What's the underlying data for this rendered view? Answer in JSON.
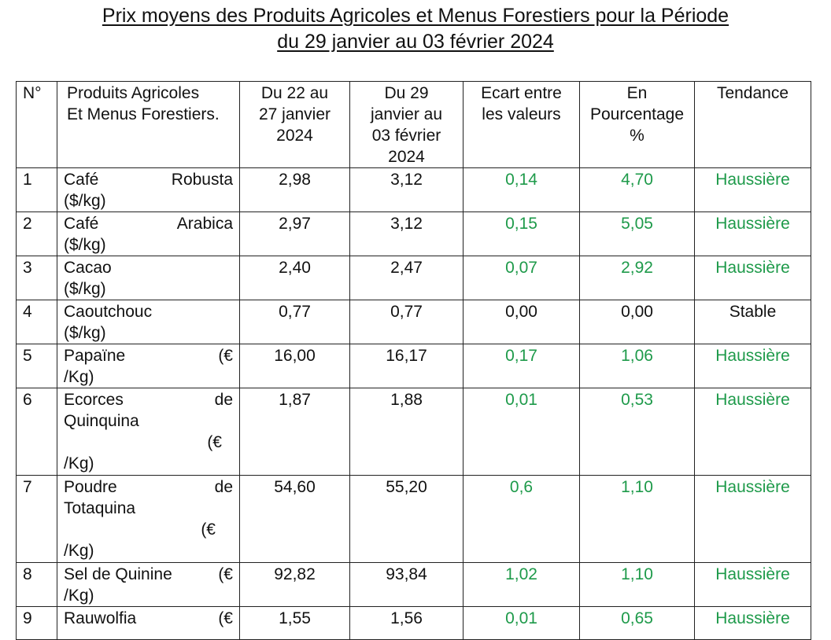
{
  "title": {
    "line1": "Prix moyens des Produits Agricoles et Menus Forestiers pour la Période",
    "line2": "du 29  janvier au 03 février  2024"
  },
  "headers": {
    "no": "N°",
    "product": [
      "Produits  Agricoles",
      "Et Menus Forestiers."
    ],
    "prev": [
      "Du 22 au",
      "27 janvier",
      "2024"
    ],
    "curr": [
      "Du 29",
      "janvier au",
      "03 février",
      "2024"
    ],
    "diff": [
      "Ecart entre",
      "les valeurs"
    ],
    "pct": [
      "En",
      "Pourcentage",
      "%"
    ],
    "trend": "Tendance"
  },
  "colors": {
    "positive": "#1e9a4a",
    "neutral": "#111111"
  },
  "rows": [
    {
      "no": "1",
      "p1": "Café",
      "p1b": "Robusta",
      "p2": "($/kg)",
      "prev": "2,98",
      "curr": "3,12",
      "diff": "0,14",
      "pct": "4,70",
      "trend": "Haussière",
      "color": "green"
    },
    {
      "no": "2",
      "p1": "Café",
      "p1b": "Arabica",
      "p2": "($/kg)",
      "prev": "2,97",
      "curr": "3,12",
      "diff": "0,15",
      "pct": "5,05",
      "trend": "Haussière",
      "color": "green"
    },
    {
      "no": "3",
      "p1": "Cacao",
      "p1b": "",
      "p2": "($/kg)",
      "prev": "2,40",
      "curr": "2,47",
      "diff": "0,07",
      "pct": "2,92",
      "trend": "Haussière",
      "color": "green"
    },
    {
      "no": "4",
      "p1": "Caoutchouc",
      "p1b": "",
      "p2": "($/kg)",
      "prev": "0,77",
      "curr": "0,77",
      "diff": "0,00",
      "pct": "0,00",
      "trend": "Stable",
      "color": "black"
    },
    {
      "no": "5",
      "p1": "Papaïne",
      "p1b": "(€",
      "p2": "/Kg)",
      "prev": "16,00",
      "curr": "16,17",
      "diff": "0,17",
      "pct": "1,06",
      "trend": "Haussière",
      "color": "green"
    },
    {
      "no": "6",
      "p1": "Ecorces",
      "p1b": "de",
      "p2": "Quinquina",
      "p3": "(€",
      "p4": "/Kg)",
      "prev": "1,87",
      "curr": "1,88",
      "diff": "0,01",
      "pct": "0,53",
      "trend": "Haussière",
      "color": "green"
    },
    {
      "no": "7",
      "p1": "Poudre",
      "p1b": "de",
      "p2": "Totaquina",
      "p3": "(€",
      "p4": "/Kg)",
      "prev": "54,60",
      "curr": "55,20",
      "diff": "0,6",
      "pct": "1,10",
      "trend": "Haussière",
      "color": "green"
    },
    {
      "no": "8",
      "p1": "Sel de Quinine",
      "p1b": "(€",
      "p2": "/Kg)",
      "prev": "92,82",
      "curr": "93,84",
      "diff": "1,02",
      "pct": "1,10",
      "trend": "Haussière",
      "color": "green"
    },
    {
      "no": "9",
      "p1": "Rauwolfia",
      "p1b": "(€",
      "p2": "",
      "prev": "1,55",
      "curr": "1,56",
      "diff": "0,01",
      "pct": "0,65",
      "trend": "Haussière",
      "color": "green"
    }
  ]
}
